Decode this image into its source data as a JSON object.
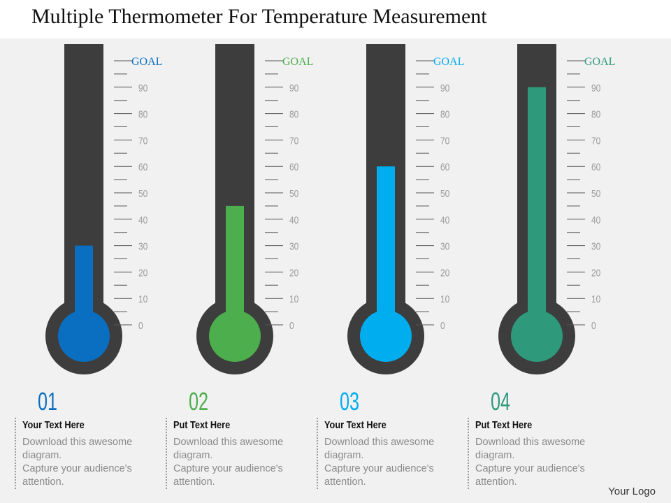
{
  "chart_data": {
    "type": "thermometer",
    "title": "Multiple Thermometer For Temperature Measurement",
    "ylim": [
      0,
      100
    ],
    "yticks": [
      0,
      10,
      20,
      30,
      40,
      50,
      60,
      70,
      80,
      90,
      {
        "value": 100,
        "label": "GOAL"
      }
    ],
    "series": [
      {
        "name": "01",
        "color": "#0b6fc1",
        "values": [
          30
        ]
      },
      {
        "name": "02",
        "color": "#4cae4c",
        "values": [
          45
        ]
      },
      {
        "name": "03",
        "color": "#00adef",
        "values": [
          60
        ]
      },
      {
        "name": "04",
        "color": "#2e9a7b",
        "values": [
          90
        ]
      }
    ]
  },
  "cards": [
    {
      "heading": "Your Text Here",
      "lines": [
        "Download this awesome",
        "diagram.",
        "Capture your audience's",
        "attention."
      ]
    },
    {
      "heading": "Put Text Here",
      "lines": [
        "Download this awesome",
        "diagram.",
        "Capture your audience's",
        "attention."
      ]
    },
    {
      "heading": "Your Text Here",
      "lines": [
        "Download this awesome",
        "diagram.",
        "Capture your audience's",
        "attention."
      ]
    },
    {
      "heading": "Put Text Here",
      "lines": [
        "Download this awesome",
        "diagram.",
        "Capture your audience's",
        "attention."
      ]
    }
  ],
  "logo": "Your Logo"
}
